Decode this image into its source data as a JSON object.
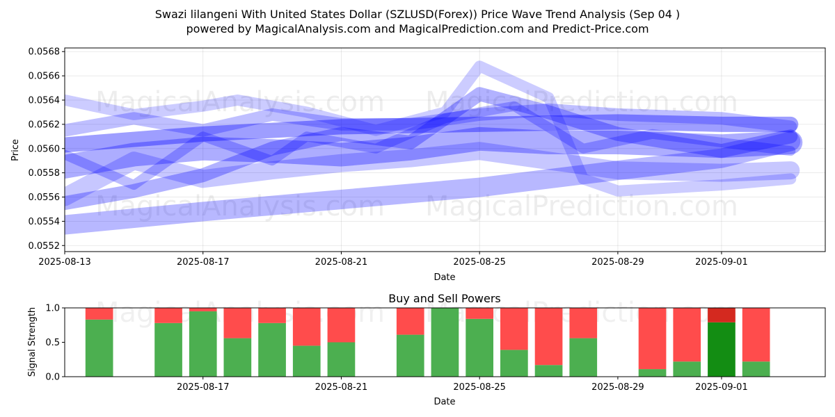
{
  "figure": {
    "title_line1": "Swazi lilangeni With United States Dollar (SZLUSD(Forex)) Price Wave Trend Analysis (Sep 04 )",
    "title_line2": "powered by MagicalAnalysis.com and MagicalPrediction.com and Predict-Price.com",
    "watermarks": [
      "MagicalAnalysis.com",
      "MagicalPrediction.com"
    ]
  },
  "chart_data": [
    {
      "type": "line",
      "title": "",
      "xlabel": "Date",
      "ylabel": "Price",
      "x_tick_labels": [
        "2025-08-13",
        "2025-08-17",
        "2025-08-21",
        "2025-08-25",
        "2025-08-29",
        "2025-09-01"
      ],
      "y_tick_labels": [
        "0.0552",
        "0.0554",
        "0.0556",
        "0.0558",
        "0.0560",
        "0.0562",
        "0.0564",
        "0.0566",
        "0.0568"
      ],
      "xlim": [
        "2025-08-13",
        "2025-09-04"
      ],
      "ylim": [
        0.05515,
        0.05683
      ],
      "grid": true,
      "color": "#0000ff",
      "series": [
        {
          "values": [
            [
              "2025-08-13",
              0.05537
            ],
            [
              "2025-08-17",
              0.05548
            ],
            [
              "2025-08-21",
              0.05558
            ],
            [
              "2025-08-25",
              0.05568
            ],
            [
              "2025-08-29",
              0.05582
            ],
            [
              "2025-09-01",
              0.05592
            ],
            [
              "2025-09-03",
              0.05606
            ]
          ]
        },
        {
          "values": [
            [
              "2025-08-13",
              0.05603
            ],
            [
              "2025-08-17",
              0.05612
            ],
            [
              "2025-08-21",
              0.05618
            ],
            [
              "2025-08-25",
              0.0562
            ],
            [
              "2025-08-29",
              0.05622
            ],
            [
              "2025-09-01",
              0.0562
            ],
            [
              "2025-09-03",
              0.0562
            ]
          ]
        },
        {
          "values": [
            [
              "2025-08-13",
              0.05585
            ],
            [
              "2025-08-15",
              0.05595
            ],
            [
              "2025-08-17",
              0.056
            ],
            [
              "2025-08-19",
              0.05598
            ],
            [
              "2025-08-21",
              0.05595
            ],
            [
              "2025-08-23",
              0.056
            ],
            [
              "2025-08-25",
              0.05608
            ],
            [
              "2025-08-27",
              0.05605
            ],
            [
              "2025-08-29",
              0.05605
            ],
            [
              "2025-09-01",
              0.05602
            ],
            [
              "2025-09-03",
              0.05605
            ]
          ]
        },
        {
          "values": [
            [
              "2025-08-13",
              0.05615
            ],
            [
              "2025-08-15",
              0.05625
            ],
            [
              "2025-08-17",
              0.05615
            ],
            [
              "2025-08-19",
              0.05628
            ],
            [
              "2025-08-21",
              0.0562
            ],
            [
              "2025-08-23",
              0.0562
            ],
            [
              "2025-08-25",
              0.05628
            ],
            [
              "2025-08-27",
              0.05632
            ],
            [
              "2025-08-29",
              0.05628
            ],
            [
              "2025-09-01",
              0.05625
            ],
            [
              "2025-09-03",
              0.05618
            ]
          ]
        },
        {
          "values": [
            [
              "2025-08-13",
              0.0556
            ],
            [
              "2025-08-14",
              0.05575
            ],
            [
              "2025-08-15",
              0.0559
            ],
            [
              "2025-08-17",
              0.05575
            ],
            [
              "2025-08-19",
              0.05582
            ],
            [
              "2025-08-21",
              0.05588
            ],
            [
              "2025-08-23",
              0.05592
            ],
            [
              "2025-08-25",
              0.05598
            ],
            [
              "2025-08-27",
              0.0559
            ],
            [
              "2025-08-29",
              0.05582
            ],
            [
              "2025-09-01",
              0.0558
            ],
            [
              "2025-09-03",
              0.05582
            ]
          ]
        },
        {
          "values": [
            [
              "2025-08-13",
              0.0564
            ],
            [
              "2025-08-15",
              0.05628
            ],
            [
              "2025-08-17",
              0.05635
            ],
            [
              "2025-08-18",
              0.0564
            ],
            [
              "2025-08-20",
              0.0563
            ],
            [
              "2025-08-22",
              0.05615
            ],
            [
              "2025-08-24",
              0.0563
            ],
            [
              "2025-08-25",
              0.05668
            ],
            [
              "2025-08-27",
              0.05642
            ],
            [
              "2025-08-28",
              0.05575
            ],
            [
              "2025-08-29",
              0.05565
            ],
            [
              "2025-09-01",
              0.0557
            ],
            [
              "2025-09-03",
              0.05575
            ]
          ]
        },
        {
          "values": [
            [
              "2025-08-13",
              0.05555
            ],
            [
              "2025-08-15",
              0.05565
            ],
            [
              "2025-08-17",
              0.05578
            ],
            [
              "2025-08-19",
              0.056
            ],
            [
              "2025-08-21",
              0.05612
            ],
            [
              "2025-08-23",
              0.05605
            ],
            [
              "2025-08-25",
              0.05645
            ],
            [
              "2025-08-27",
              0.0563
            ],
            [
              "2025-08-29",
              0.05612
            ],
            [
              "2025-09-01",
              0.05598
            ],
            [
              "2025-09-03",
              0.0561
            ]
          ]
        },
        {
          "values": [
            [
              "2025-08-13",
              0.05595
            ],
            [
              "2025-08-15",
              0.0557
            ],
            [
              "2025-08-17",
              0.0561
            ],
            [
              "2025-08-19",
              0.0559
            ],
            [
              "2025-08-20",
              0.0561
            ],
            [
              "2025-08-22",
              0.056
            ],
            [
              "2025-08-24",
              0.05625
            ],
            [
              "2025-08-26",
              0.05635
            ],
            [
              "2025-08-28",
              0.056
            ],
            [
              "2025-08-30",
              0.05612
            ],
            [
              "2025-09-01",
              0.05605
            ],
            [
              "2025-09-03",
              0.05598
            ]
          ]
        }
      ]
    },
    {
      "type": "bar",
      "title": "Buy and Sell Powers",
      "xlabel": "Date",
      "ylabel": "Signal Strength",
      "x_tick_labels": [
        "2025-08-17",
        "2025-08-21",
        "2025-08-25",
        "2025-08-29",
        "2025-09-01"
      ],
      "y_tick_labels": [
        "0.0",
        "0.5",
        "1.0"
      ],
      "xlim": [
        "2025-08-13",
        "2025-09-04"
      ],
      "ylim": [
        0,
        1
      ],
      "colors": {
        "buy": "#4caf50",
        "sell": "#ff4c4c",
        "buy_highlight": "#138d13",
        "sell_highlight": "#d4291f"
      },
      "bars": [
        {
          "date": "2025-08-14",
          "buy": 0.83
        },
        {
          "date": "2025-08-16",
          "buy": 0.78
        },
        {
          "date": "2025-08-17",
          "buy": 0.95
        },
        {
          "date": "2025-08-18",
          "buy": 0.56
        },
        {
          "date": "2025-08-19",
          "buy": 0.78
        },
        {
          "date": "2025-08-20",
          "buy": 0.45
        },
        {
          "date": "2025-08-21",
          "buy": 0.5
        },
        {
          "date": "2025-08-23",
          "buy": 0.61
        },
        {
          "date": "2025-08-24",
          "buy": 1.0
        },
        {
          "date": "2025-08-25",
          "buy": 0.84
        },
        {
          "date": "2025-08-26",
          "buy": 0.39
        },
        {
          "date": "2025-08-27",
          "buy": 0.17
        },
        {
          "date": "2025-08-28",
          "buy": 0.56
        },
        {
          "date": "2025-08-30",
          "buy": 0.11
        },
        {
          "date": "2025-08-31",
          "buy": 0.22
        },
        {
          "date": "2025-09-01",
          "buy": 0.79,
          "highlight": true
        },
        {
          "date": "2025-09-02",
          "buy": 0.22
        }
      ]
    }
  ]
}
